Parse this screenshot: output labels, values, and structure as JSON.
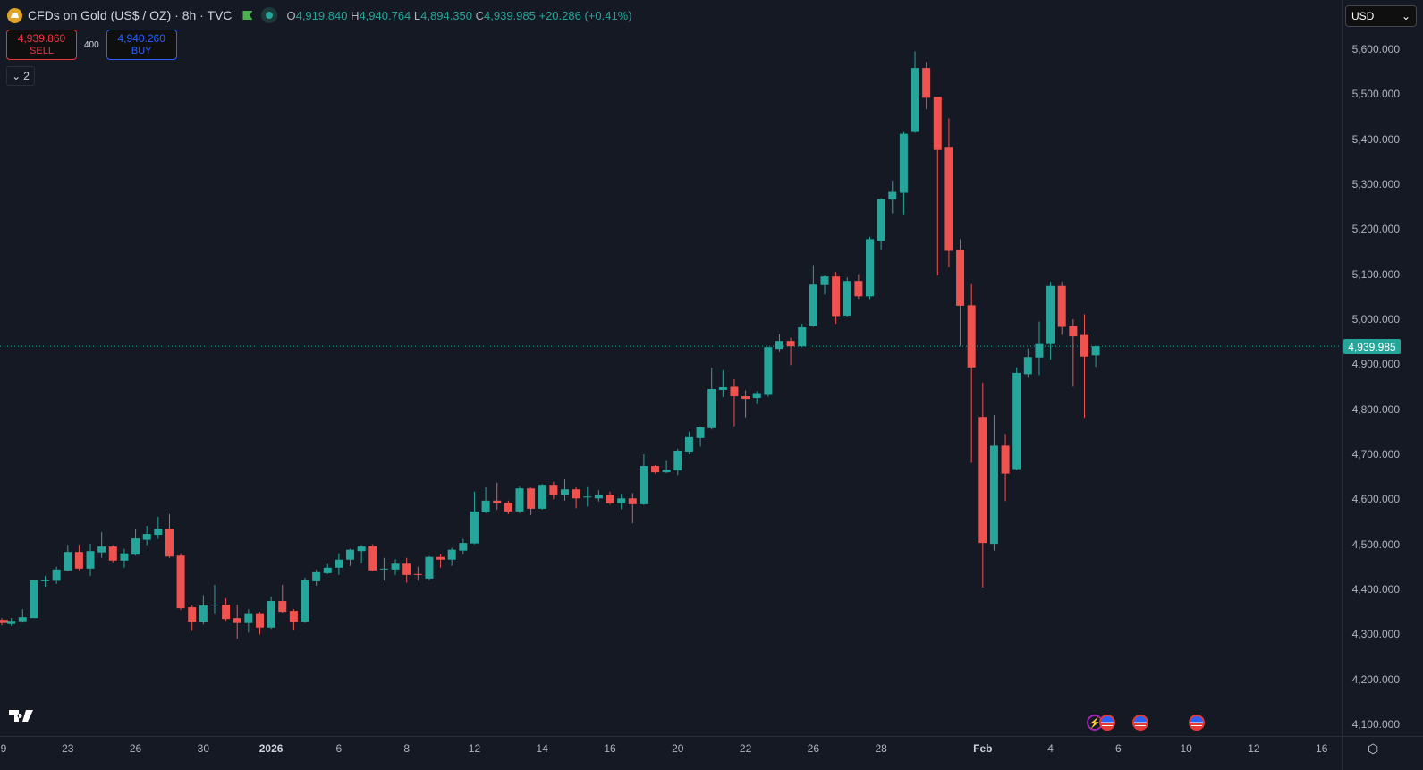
{
  "header": {
    "title": "CFDs on Gold (US$ / OZ) · 8h · TVC",
    "open_label": "O",
    "open": "4,919.840",
    "high_label": "H",
    "high": "4,940.764",
    "low_label": "L",
    "low": "4,894.350",
    "close_label": "C",
    "close": "4,939.985",
    "change": "+20.286 (+0.41%)"
  },
  "trade": {
    "sell_price": "4,939.860",
    "sell_label": "SELL",
    "spread": "400",
    "buy_price": "4,940.260",
    "buy_label": "BUY"
  },
  "indicators_toggle": {
    "count": "2"
  },
  "currency_select": {
    "value": "USD"
  },
  "current_price_label": "4,939.985",
  "colors": {
    "up": "#26a69a",
    "down": "#ef5350",
    "background": "#151924"
  },
  "chart_data": {
    "type": "candlestick",
    "title": "CFDs on Gold (US$ / OZ) · 8h · TVC",
    "ylim": [
      4060,
      5640
    ],
    "y_tick_labels": [
      "5,600.000",
      "5,500.000",
      "5,400.000",
      "5,300.000",
      "5,200.000",
      "5,100.000",
      "5,000.000",
      "4,900.000",
      "4,800.000",
      "4,700.000",
      "4,600.000",
      "4,500.000",
      "4,400.000",
      "4,300.000",
      "4,200.000",
      "4,100.000"
    ],
    "y_tick_values": [
      5600,
      5500,
      5400,
      5300,
      5200,
      5100,
      5000,
      4900,
      4800,
      4700,
      4600,
      4500,
      4400,
      4300,
      4200,
      4100
    ],
    "x_tick_labels": [
      "9",
      "23",
      "26",
      "30",
      "2026",
      "6",
      "8",
      "12",
      "14",
      "16",
      "20",
      "22",
      "26",
      "28",
      "Feb",
      "4",
      "6",
      "10",
      "12",
      "16"
    ],
    "x_tick_bar_index": [
      0,
      6,
      12,
      18,
      24,
      30,
      36,
      42,
      48,
      54,
      60,
      66,
      72,
      78,
      87,
      93,
      99,
      105,
      111,
      117
    ],
    "x_bar_count_visible": 119,
    "last_price": 4939.985,
    "ohlc": [
      [
        4332,
        4336,
        4320,
        4325
      ],
      [
        4323,
        4336,
        4319,
        4330
      ],
      [
        4329,
        4356,
        4326,
        4338
      ],
      [
        4336,
        4420,
        4336,
        4420
      ],
      [
        4418,
        4430,
        4406,
        4420
      ],
      [
        4419,
        4450,
        4412,
        4444
      ],
      [
        4442,
        4499,
        4440,
        4483
      ],
      [
        4483,
        4499,
        4442,
        4446
      ],
      [
        4446,
        4501,
        4430,
        4485
      ],
      [
        4482,
        4527,
        4470,
        4495
      ],
      [
        4495,
        4498,
        4460,
        4464
      ],
      [
        4464,
        4490,
        4448,
        4480
      ],
      [
        4477,
        4533,
        4475,
        4513
      ],
      [
        4510,
        4541,
        4498,
        4523
      ],
      [
        4521,
        4561,
        4512,
        4535
      ],
      [
        4535,
        4567,
        4470,
        4473
      ],
      [
        4475,
        4480,
        4354,
        4358
      ],
      [
        4360,
        4365,
        4308,
        4328
      ],
      [
        4328,
        4387,
        4322,
        4364
      ],
      [
        4364,
        4410,
        4345,
        4366
      ],
      [
        4366,
        4380,
        4330,
        4334
      ],
      [
        4336,
        4366,
        4290,
        4325
      ],
      [
        4325,
        4356,
        4304,
        4345
      ],
      [
        4345,
        4350,
        4300,
        4315
      ],
      [
        4315,
        4384,
        4312,
        4374
      ],
      [
        4374,
        4410,
        4347,
        4350
      ],
      [
        4352,
        4356,
        4310,
        4328
      ],
      [
        4328,
        4426,
        4325,
        4420
      ],
      [
        4418,
        4444,
        4408,
        4438
      ],
      [
        4436,
        4456,
        4434,
        4448
      ],
      [
        4448,
        4480,
        4432,
        4466
      ],
      [
        4466,
        4490,
        4452,
        4488
      ],
      [
        4485,
        4498,
        4458,
        4495
      ],
      [
        4496,
        4500,
        4440,
        4442
      ],
      [
        4444,
        4470,
        4420,
        4446
      ],
      [
        4444,
        4467,
        4432,
        4457
      ],
      [
        4457,
        4470,
        4415,
        4432
      ],
      [
        4434,
        4450,
        4420,
        4433
      ],
      [
        4424,
        4474,
        4420,
        4472
      ],
      [
        4472,
        4478,
        4448,
        4466
      ],
      [
        4466,
        4492,
        4452,
        4488
      ],
      [
        4486,
        4512,
        4478,
        4503
      ],
      [
        4502,
        4617,
        4500,
        4573
      ],
      [
        4571,
        4627,
        4569,
        4597
      ],
      [
        4597,
        4637,
        4577,
        4591
      ],
      [
        4592,
        4597,
        4567,
        4573
      ],
      [
        4573,
        4630,
        4569,
        4624
      ],
      [
        4624,
        4626,
        4565,
        4579
      ],
      [
        4579,
        4634,
        4577,
        4632
      ],
      [
        4632,
        4639,
        4600,
        4610
      ],
      [
        4610,
        4644,
        4597,
        4622
      ],
      [
        4622,
        4627,
        4580,
        4602
      ],
      [
        4604,
        4629,
        4584,
        4606
      ],
      [
        4602,
        4620,
        4595,
        4610
      ],
      [
        4610,
        4617,
        4588,
        4591
      ],
      [
        4591,
        4612,
        4578,
        4602
      ],
      [
        4602,
        4614,
        4547,
        4589
      ],
      [
        4589,
        4700,
        4587,
        4674
      ],
      [
        4674,
        4676,
        4657,
        4660
      ],
      [
        4660,
        4687,
        4658,
        4666
      ],
      [
        4664,
        4712,
        4654,
        4708
      ],
      [
        4706,
        4750,
        4700,
        4738
      ],
      [
        4736,
        4762,
        4717,
        4760
      ],
      [
        4758,
        4892,
        4755,
        4845
      ],
      [
        4843,
        4887,
        4827,
        4849
      ],
      [
        4850,
        4867,
        4762,
        4829
      ],
      [
        4829,
        4842,
        4782,
        4823
      ],
      [
        4825,
        4840,
        4812,
        4834
      ],
      [
        4832,
        4938,
        4828,
        4938
      ],
      [
        4934,
        4967,
        4927,
        4952
      ],
      [
        4952,
        4959,
        4898,
        4940
      ],
      [
        4940,
        4990,
        4938,
        4982
      ],
      [
        4985,
        5120,
        4983,
        5077
      ],
      [
        5076,
        5097,
        5055,
        5095
      ],
      [
        5095,
        5105,
        4990,
        5007
      ],
      [
        5008,
        5093,
        5006,
        5085
      ],
      [
        5085,
        5100,
        5045,
        5051
      ],
      [
        5051,
        5183,
        5045,
        5178
      ],
      [
        5174,
        5269,
        5155,
        5267
      ],
      [
        5266,
        5308,
        5235,
        5283
      ],
      [
        5281,
        5416,
        5233,
        5412
      ],
      [
        5416,
        5595,
        5414,
        5558
      ],
      [
        5558,
        5572,
        5467,
        5492
      ],
      [
        5494,
        5494,
        5097,
        5376
      ],
      [
        5383,
        5446,
        5116,
        5152
      ],
      [
        5154,
        5178,
        4940,
        5030
      ],
      [
        5031,
        5078,
        4681,
        4893
      ],
      [
        4783,
        4859,
        4404,
        4503
      ],
      [
        4501,
        4787,
        4486,
        4719
      ],
      [
        4719,
        4745,
        4596,
        4657
      ],
      [
        4667,
        4893,
        4665,
        4881
      ],
      [
        4878,
        4935,
        4870,
        4916
      ],
      [
        4915,
        4995,
        4876,
        4945
      ],
      [
        4945,
        5083,
        4910,
        5074
      ],
      [
        5074,
        5083,
        4965,
        4983
      ],
      [
        4985,
        5000,
        4850,
        4962
      ],
      [
        4965,
        5011,
        4781,
        4917
      ],
      [
        4919.84,
        4940.764,
        4894.35,
        4939.985
      ]
    ]
  },
  "events": [
    "lightning-event",
    "us-economic-event",
    "us-economic-event",
    "us-economic-event"
  ]
}
